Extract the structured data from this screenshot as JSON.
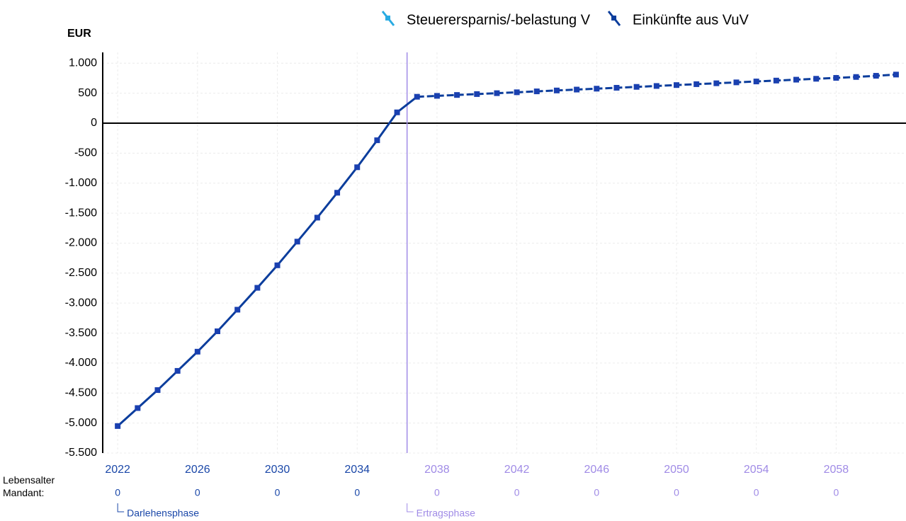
{
  "chart_data": {
    "type": "line",
    "y_label": "EUR",
    "legend": [
      {
        "name": "Steuerersparnis/-belastung V",
        "color": "#29abe2"
      },
      {
        "name": "Einkünfte aus VuV",
        "color": "#0b3d9c"
      }
    ],
    "x": [
      2022,
      2023,
      2024,
      2025,
      2026,
      2027,
      2028,
      2029,
      2030,
      2031,
      2032,
      2033,
      2034,
      2035,
      2036,
      2037,
      2038,
      2039,
      2040,
      2041,
      2042,
      2043,
      2044,
      2045,
      2046,
      2047,
      2048,
      2049,
      2050,
      2051,
      2052,
      2053,
      2054,
      2055,
      2056,
      2057,
      2058,
      2059,
      2060,
      2061
    ],
    "series": [
      {
        "name": "Einkünfte aus VuV",
        "color": "#0b3d9c",
        "values": [
          -5050,
          -4750,
          -4450,
          -4130,
          -3810,
          -3470,
          -3110,
          -2745,
          -2370,
          -1975,
          -1575,
          -1160,
          -735,
          -285,
          180,
          440,
          455,
          470,
          485,
          500,
          515,
          530,
          545,
          560,
          575,
          590,
          605,
          620,
          635,
          650,
          665,
          680,
          695,
          710,
          725,
          740,
          755,
          770,
          790,
          810
        ]
      }
    ],
    "dashed_from": 2037,
    "xlim": [
      2021.25,
      2061.5
    ],
    "xticks": [
      2022,
      2026,
      2030,
      2034,
      2038,
      2042,
      2046,
      2050,
      2054,
      2058
    ],
    "ylim": [
      -5500,
      1180
    ],
    "yticks": [
      {
        "value": 1000,
        "label": "1.000"
      },
      500,
      0,
      -500,
      {
        "value": -1000,
        "label": "-1.000"
      },
      {
        "value": -1500,
        "label": "-1.500"
      },
      {
        "value": -2000,
        "label": "-2.000"
      },
      {
        "value": -2500,
        "label": "-2.500"
      },
      {
        "value": -3000,
        "label": "-3.000"
      },
      {
        "value": -3500,
        "label": "-3.500"
      },
      {
        "value": -4000,
        "label": "-4.000"
      },
      {
        "value": -4500,
        "label": "-4.500"
      },
      {
        "value": -5000,
        "label": "-5.000"
      },
      {
        "value": -5500,
        "label": "-5.500"
      }
    ],
    "age_row_label": "Lebensalter Mandant:",
    "ages": [
      "0",
      "0",
      "0",
      "0",
      "0",
      "0",
      "0",
      "0",
      "0",
      "0"
    ],
    "phases": [
      {
        "label": "Darlehensphase",
        "x": 2022,
        "color": "#1a47a8"
      },
      {
        "label": "Ertragsphase",
        "x": 2036.5,
        "color": "#a08be6"
      }
    ],
    "grid": true
  }
}
